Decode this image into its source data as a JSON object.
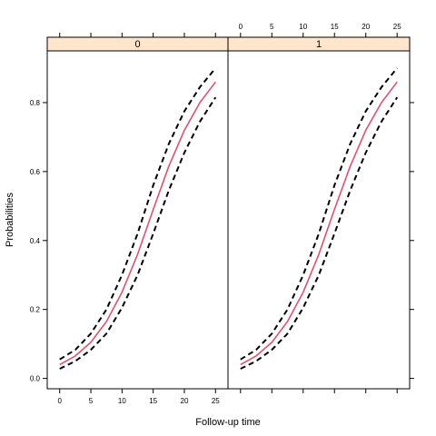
{
  "chart_data": {
    "type": "line",
    "layout": "lattice-2-panels",
    "xlabel": "Follow-up time",
    "ylabel": "Probabilities",
    "xlim": [
      -2,
      27
    ],
    "ylim": [
      -0.03,
      0.95
    ],
    "x_ticks": [
      0,
      5,
      10,
      15,
      20,
      25
    ],
    "y_ticks": [
      0.0,
      0.2,
      0.4,
      0.6,
      0.8
    ],
    "y_tick_labels": [
      "0.0",
      "0.2",
      "0.4",
      "0.6",
      "0.8"
    ],
    "colors": {
      "strip_background": "#ffe5cc",
      "fit_line": "#e0506a",
      "band_line": "#000000",
      "frame": "#000000"
    },
    "panels": [
      {
        "strip_label": "0",
        "series": [
          {
            "role": "fit",
            "style": "solid",
            "x": [
              0,
              2.5,
              5,
              7.5,
              10,
              12.5,
              15,
              17.5,
              20,
              22.5,
              25
            ],
            "y": [
              0.04,
              0.065,
              0.105,
              0.165,
              0.25,
              0.36,
              0.49,
              0.615,
              0.72,
              0.8,
              0.86
            ]
          },
          {
            "role": "upper",
            "style": "dashed",
            "x": [
              0,
              2.5,
              5,
              7.5,
              10,
              12.5,
              15,
              17.5,
              20,
              22.5,
              25
            ],
            "y": [
              0.055,
              0.083,
              0.13,
              0.2,
              0.3,
              0.42,
              0.56,
              0.68,
              0.775,
              0.845,
              0.9
            ]
          },
          {
            "role": "lower",
            "style": "dashed",
            "x": [
              0,
              2.5,
              5,
              7.5,
              10,
              12.5,
              15,
              17.5,
              20,
              22.5,
              25
            ],
            "y": [
              0.028,
              0.05,
              0.083,
              0.13,
              0.205,
              0.3,
              0.42,
              0.545,
              0.655,
              0.745,
              0.815
            ]
          }
        ]
      },
      {
        "strip_label": "1",
        "series": [
          {
            "role": "fit",
            "style": "solid",
            "x": [
              0,
              2.5,
              5,
              7.5,
              10,
              12.5,
              15,
              17.5,
              20,
              22.5,
              25
            ],
            "y": [
              0.04,
              0.065,
              0.105,
              0.165,
              0.25,
              0.36,
              0.49,
              0.615,
              0.72,
              0.8,
              0.86
            ]
          },
          {
            "role": "upper",
            "style": "dashed",
            "x": [
              0,
              2.5,
              5,
              7.5,
              10,
              12.5,
              15,
              17.5,
              20,
              22.5,
              25
            ],
            "y": [
              0.055,
              0.083,
              0.13,
              0.2,
              0.3,
              0.42,
              0.56,
              0.68,
              0.775,
              0.845,
              0.9
            ]
          },
          {
            "role": "lower",
            "style": "dashed",
            "x": [
              0,
              2.5,
              5,
              7.5,
              10,
              12.5,
              15,
              17.5,
              20,
              22.5,
              25
            ],
            "y": [
              0.028,
              0.05,
              0.083,
              0.13,
              0.205,
              0.3,
              0.42,
              0.545,
              0.655,
              0.745,
              0.815
            ]
          }
        ]
      }
    ]
  }
}
